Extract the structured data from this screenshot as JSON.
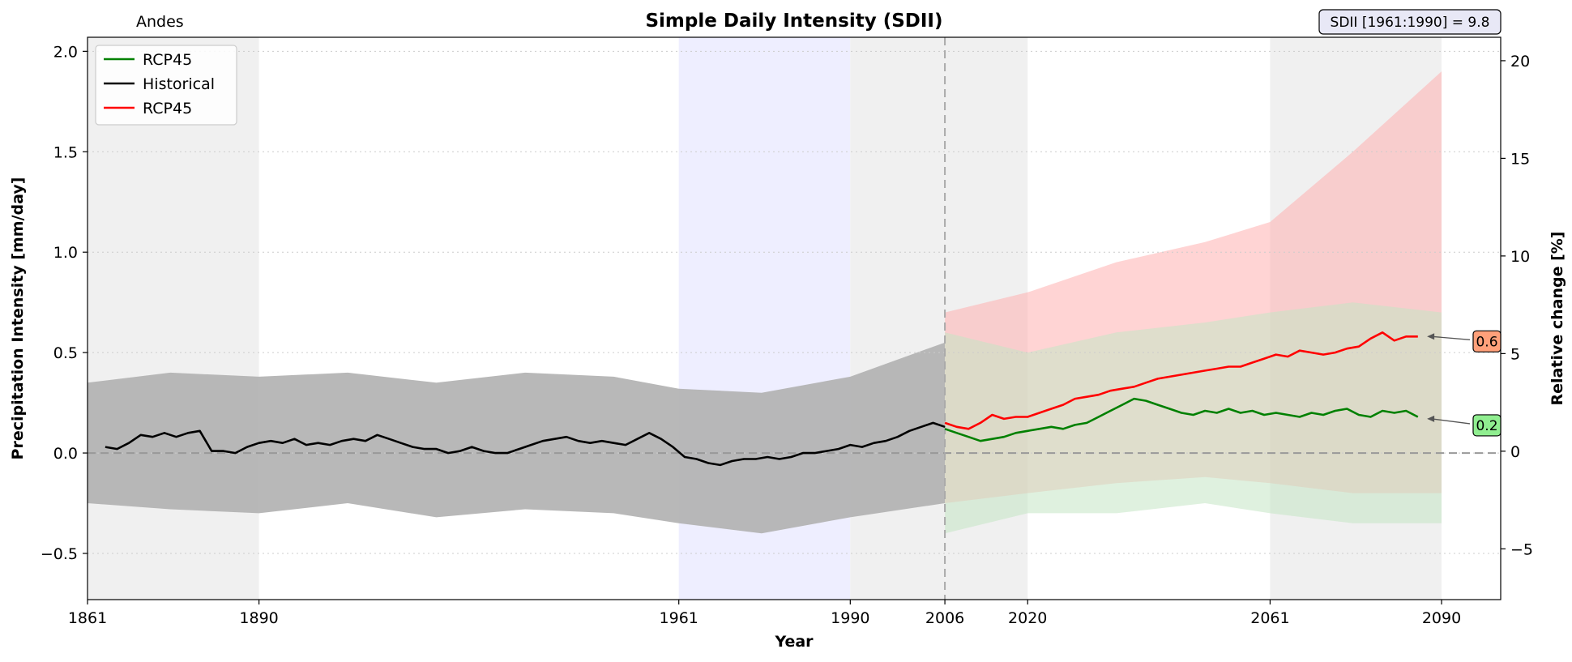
{
  "chart_data": {
    "type": "line",
    "title": "Simple Daily Intensity (SDII)",
    "region": "Andes",
    "baseline_box": "SDII [1961:1990] = 9.8",
    "xlabel": "Year",
    "ylabel": "Precipitation Intensity [mm/day]",
    "ylabel_right": "Relative change [%]",
    "xlim": [
      1861,
      2100
    ],
    "ylim": [
      -0.73,
      2.07
    ],
    "ylim_right": [
      -7.6,
      21.2
    ],
    "x_ticks": [
      "1861",
      "1890",
      "1961",
      "1990",
      "2006",
      "2020",
      "2061",
      "2090"
    ],
    "y_ticks": [
      "−0.5",
      "0.0",
      "0.5",
      "1.0",
      "1.5",
      "2.0"
    ],
    "y_ticks_right": [
      "−5",
      "0",
      "5",
      "10",
      "15",
      "20"
    ],
    "grid": "horizontal-dotted",
    "legend_position": "upper-left",
    "legend": [
      {
        "label": "RCP45",
        "color": "#008000"
      },
      {
        "label": "Historical",
        "color": "#000000"
      },
      {
        "label": "RCP45",
        "color": "#ff0000"
      }
    ],
    "shaded_periods": [
      {
        "start": 1861,
        "end": 1890,
        "color": "#f0f0f0"
      },
      {
        "start": 1961,
        "end": 1990,
        "color": "#eeeeff"
      },
      {
        "start": 1990,
        "end": 2006,
        "color": "#f0f0f0"
      },
      {
        "start": 2006,
        "end": 2020,
        "color": "#f0f0f0"
      },
      {
        "start": 2061,
        "end": 2090,
        "color": "#f0f0f0"
      }
    ],
    "reference_year": 2006,
    "annotations": [
      {
        "text": "0.6",
        "points_to_year": 2087,
        "points_to_value": 0.58,
        "color": "#ffa07a"
      },
      {
        "text": "0.2",
        "points_to_year": 2087,
        "points_to_value": 0.17,
        "color": "#90ee90"
      }
    ],
    "series": [
      {
        "name": "Historical",
        "color": "#000000",
        "x": [
          1864,
          1866,
          1868,
          1870,
          1872,
          1874,
          1876,
          1878,
          1880,
          1882,
          1884,
          1886,
          1888,
          1890,
          1892,
          1894,
          1896,
          1898,
          1900,
          1902,
          1904,
          1906,
          1908,
          1910,
          1912,
          1914,
          1916,
          1918,
          1920,
          1922,
          1924,
          1926,
          1928,
          1930,
          1932,
          1934,
          1936,
          1938,
          1940,
          1942,
          1944,
          1946,
          1948,
          1950,
          1952,
          1954,
          1956,
          1958,
          1960,
          1962,
          1964,
          1966,
          1968,
          1970,
          1972,
          1974,
          1976,
          1978,
          1980,
          1982,
          1984,
          1986,
          1988,
          1990,
          1992,
          1994,
          1996,
          1998,
          2000,
          2002,
          2004,
          2006
        ],
        "values": [
          0.03,
          0.02,
          0.05,
          0.09,
          0.08,
          0.1,
          0.08,
          0.1,
          0.11,
          0.01,
          0.01,
          0.0,
          0.03,
          0.05,
          0.06,
          0.05,
          0.07,
          0.04,
          0.05,
          0.04,
          0.06,
          0.07,
          0.06,
          0.09,
          0.07,
          0.05,
          0.03,
          0.02,
          0.02,
          0.0,
          0.01,
          0.03,
          0.01,
          0.0,
          0.0,
          0.02,
          0.04,
          0.06,
          0.07,
          0.08,
          0.06,
          0.05,
          0.06,
          0.05,
          0.04,
          0.07,
          0.1,
          0.07,
          0.03,
          -0.02,
          -0.03,
          -0.05,
          -0.06,
          -0.04,
          -0.03,
          -0.03,
          -0.02,
          -0.03,
          -0.02,
          0.0,
          0.0,
          0.01,
          0.02,
          0.04,
          0.03,
          0.05,
          0.06,
          0.08,
          0.11,
          0.13,
          0.15,
          0.13
        ]
      },
      {
        "name": "RCP45",
        "color": "#ff0000",
        "x": [
          2006,
          2008,
          2010,
          2012,
          2014,
          2016,
          2018,
          2020,
          2022,
          2024,
          2026,
          2028,
          2030,
          2032,
          2034,
          2036,
          2038,
          2040,
          2042,
          2044,
          2046,
          2048,
          2050,
          2052,
          2054,
          2056,
          2058,
          2060,
          2062,
          2064,
          2066,
          2068,
          2070,
          2072,
          2074,
          2076,
          2078,
          2080,
          2082,
          2084,
          2086
        ],
        "values": [
          0.15,
          0.13,
          0.12,
          0.15,
          0.19,
          0.17,
          0.18,
          0.18,
          0.2,
          0.22,
          0.24,
          0.27,
          0.28,
          0.29,
          0.31,
          0.32,
          0.33,
          0.35,
          0.37,
          0.38,
          0.39,
          0.4,
          0.41,
          0.42,
          0.43,
          0.43,
          0.45,
          0.47,
          0.49,
          0.48,
          0.51,
          0.5,
          0.49,
          0.5,
          0.52,
          0.53,
          0.57,
          0.6,
          0.56,
          0.58,
          0.58
        ]
      },
      {
        "name": "RCP45",
        "color": "#008000",
        "x": [
          2006,
          2008,
          2010,
          2012,
          2014,
          2016,
          2018,
          2020,
          2022,
          2024,
          2026,
          2028,
          2030,
          2032,
          2034,
          2036,
          2038,
          2040,
          2042,
          2044,
          2046,
          2048,
          2050,
          2052,
          2054,
          2056,
          2058,
          2060,
          2062,
          2064,
          2066,
          2068,
          2070,
          2072,
          2074,
          2076,
          2078,
          2080,
          2082,
          2084,
          2086
        ],
        "values": [
          0.12,
          0.1,
          0.08,
          0.06,
          0.07,
          0.08,
          0.1,
          0.11,
          0.12,
          0.13,
          0.12,
          0.14,
          0.15,
          0.18,
          0.21,
          0.24,
          0.27,
          0.26,
          0.24,
          0.22,
          0.2,
          0.19,
          0.21,
          0.2,
          0.22,
          0.2,
          0.21,
          0.19,
          0.2,
          0.19,
          0.18,
          0.2,
          0.19,
          0.21,
          0.22,
          0.19,
          0.18,
          0.21,
          0.2,
          0.21,
          0.18
        ]
      }
    ],
    "bands": [
      {
        "name": "Historical spread",
        "color": "#b0b0b0",
        "x": [
          1861,
          1875,
          1890,
          1905,
          1920,
          1935,
          1950,
          1961,
          1975,
          1990,
          2006
        ],
        "lower": [
          -0.25,
          -0.28,
          -0.3,
          -0.25,
          -0.32,
          -0.28,
          -0.3,
          -0.35,
          -0.4,
          -0.32,
          -0.25
        ],
        "upper": [
          0.35,
          0.4,
          0.38,
          0.4,
          0.35,
          0.4,
          0.38,
          0.32,
          0.3,
          0.38,
          0.55
        ]
      },
      {
        "name": "RCP45 (red) spread",
        "color": "#ffb0b0",
        "x": [
          2006,
          2020,
          2035,
          2050,
          2061,
          2075,
          2090
        ],
        "lower": [
          -0.25,
          -0.2,
          -0.15,
          -0.12,
          -0.15,
          -0.2,
          -0.2
        ],
        "upper": [
          0.7,
          0.8,
          0.95,
          1.05,
          1.15,
          1.5,
          1.9
        ]
      },
      {
        "name": "RCP45 (green) spread",
        "color": "#c5e6c5",
        "x": [
          2006,
          2020,
          2035,
          2050,
          2061,
          2075,
          2090
        ],
        "lower": [
          -0.4,
          -0.3,
          -0.3,
          -0.25,
          -0.3,
          -0.35,
          -0.35
        ],
        "upper": [
          0.6,
          0.5,
          0.6,
          0.65,
          0.7,
          0.75,
          0.7
        ]
      }
    ]
  }
}
